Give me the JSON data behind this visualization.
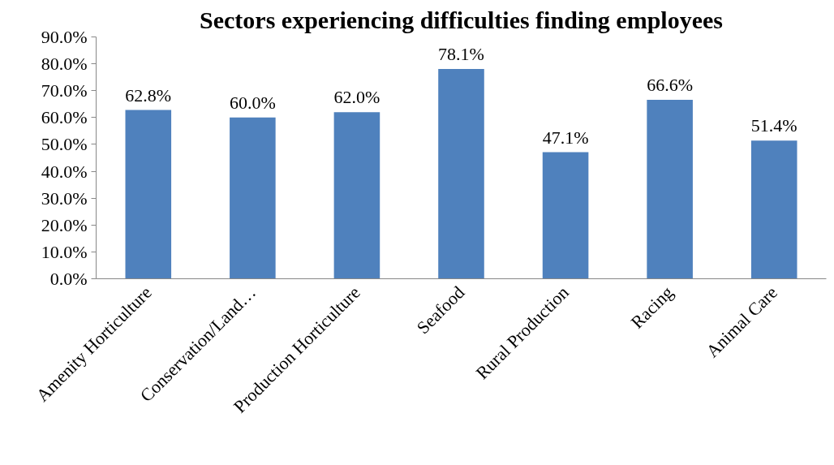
{
  "chart_data": {
    "type": "bar",
    "title": "Sectors experiencing difficulties finding employees",
    "categories": [
      "Amenity Horticulture",
      "Conservation/Land…",
      "Production Horticulture",
      "Seafood",
      "Rural Production",
      "Racing",
      "Animal Care"
    ],
    "values": [
      62.8,
      60.0,
      62.0,
      78.1,
      47.1,
      66.6,
      51.4
    ],
    "value_labels": [
      "62.8%",
      "60.0%",
      "62.0%",
      "78.1%",
      "47.1%",
      "66.6%",
      "51.4%"
    ],
    "color": "#4f81bd",
    "ylim": [
      0,
      90
    ],
    "yticks": [
      {
        "value": 0,
        "label": "0.0%"
      },
      {
        "value": 10,
        "label": "10.0%"
      },
      {
        "value": 20,
        "label": "20.0%"
      },
      {
        "value": 30,
        "label": "30.0%"
      },
      {
        "value": 40,
        "label": "40.0%"
      },
      {
        "value": 50,
        "label": "50.0%"
      },
      {
        "value": 60,
        "label": "60.0%"
      },
      {
        "value": 70,
        "label": "70.0%"
      },
      {
        "value": 80,
        "label": "80.0%"
      },
      {
        "value": 90,
        "label": "90.0%"
      }
    ],
    "grid": false
  }
}
